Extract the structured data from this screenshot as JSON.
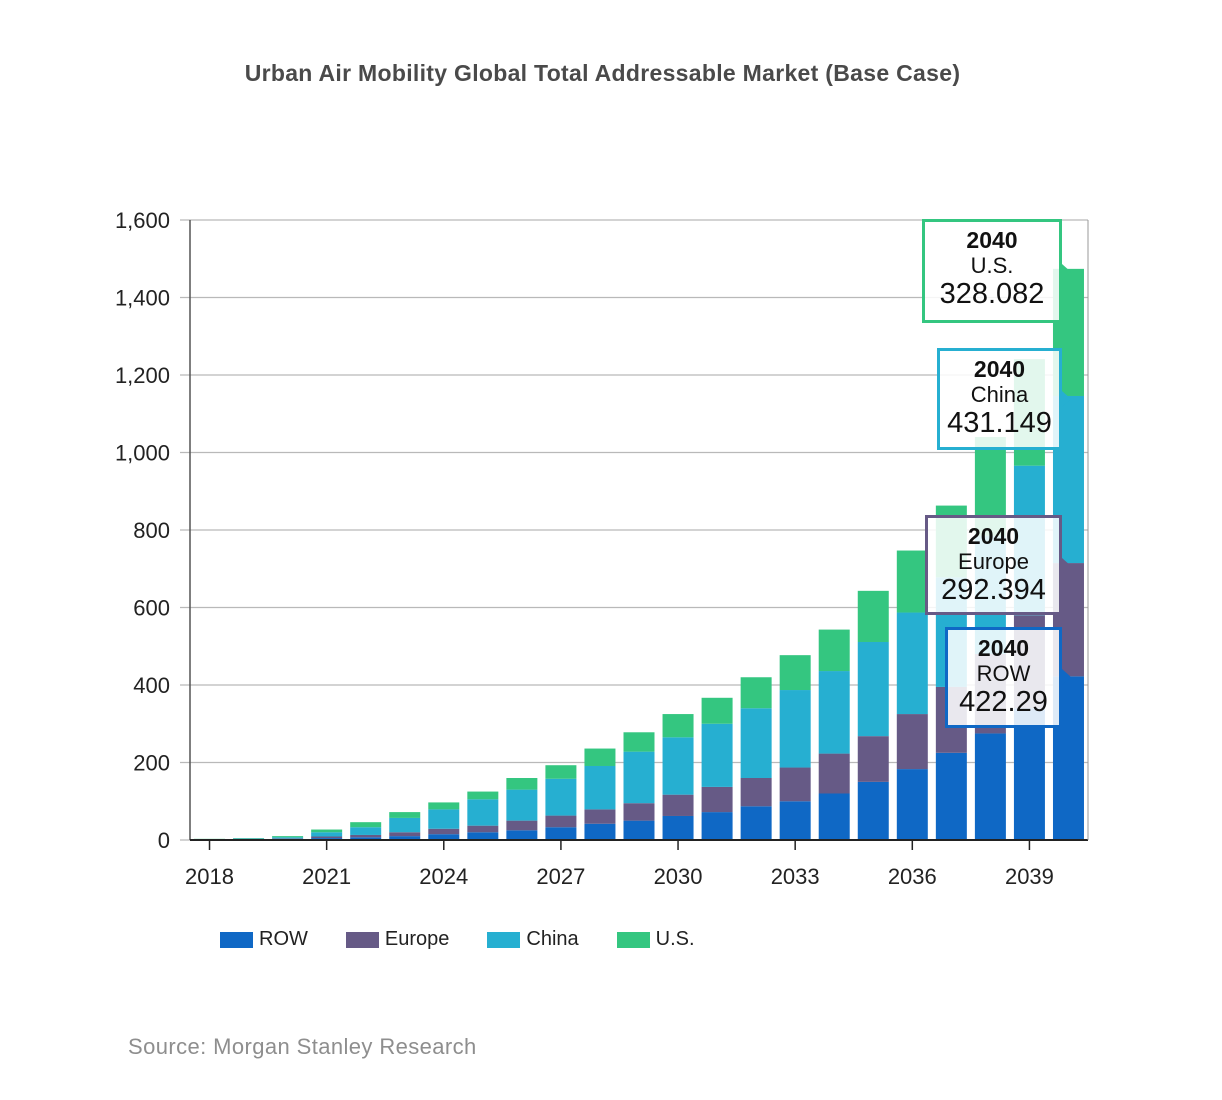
{
  "chart_data": {
    "type": "bar",
    "stacked": true,
    "title": "Urban Air Mobility Global Total Addressable Market (Base Case)",
    "source": "Source: Morgan Stanley Research",
    "xlabel": "",
    "ylabel": "",
    "ylim": [
      0,
      1600
    ],
    "yticks": [
      0,
      200,
      400,
      600,
      800,
      1000,
      1200,
      1400,
      1600
    ],
    "ytick_labels": [
      "0",
      "200",
      "400",
      "600",
      "800",
      "1,000",
      "1,200",
      "1,400",
      "1,600"
    ],
    "categories": [
      2018,
      2019,
      2020,
      2021,
      2022,
      2023,
      2024,
      2025,
      2026,
      2027,
      2028,
      2029,
      2030,
      2031,
      2032,
      2033,
      2034,
      2035,
      2036,
      2037,
      2038,
      2039,
      2040
    ],
    "xtick_labels": [
      "2018",
      "2021",
      "2024",
      "2027",
      "2030",
      "2033",
      "2036",
      "2039"
    ],
    "xtick_categories": [
      2018,
      2021,
      2024,
      2027,
      2030,
      2033,
      2036,
      2039
    ],
    "series": [
      {
        "name": "ROW",
        "color": "#0f68c5",
        "values": [
          1,
          2,
          3,
          5,
          7,
          10,
          15,
          20,
          25,
          33,
          42,
          50,
          62,
          72,
          87,
          100,
          120,
          150,
          183,
          225,
          275,
          340,
          422.29
        ]
      },
      {
        "name": "Europe",
        "color": "#665a86",
        "values": [
          0.5,
          1,
          1,
          4,
          6,
          10,
          14,
          17,
          25,
          30,
          37,
          45,
          55,
          65,
          73,
          87,
          103,
          118,
          142,
          170,
          205,
          240,
          292.394
        ]
      },
      {
        "name": "China",
        "color": "#26afd1",
        "values": [
          1,
          1,
          3,
          11,
          20,
          37,
          50,
          68,
          80,
          95,
          112,
          133,
          148,
          163,
          180,
          200,
          213,
          243,
          262,
          283,
          305,
          386,
          431.149
        ]
      },
      {
        "name": "U.S.",
        "color": "#34c680",
        "values": [
          0.5,
          1,
          3,
          7,
          13,
          15,
          18,
          20,
          30,
          35,
          45,
          50,
          60,
          67,
          80,
          90,
          107,
          132,
          160,
          185,
          255,
          275,
          328.082
        ]
      }
    ],
    "legend": {
      "position": "bottom-left",
      "items": [
        "ROW",
        "Europe",
        "China",
        "U.S."
      ]
    },
    "grid": true,
    "callouts": [
      {
        "year": "2040",
        "series": "U.S.",
        "value": "328.082",
        "color": "#34c680"
      },
      {
        "year": "2040",
        "series": "China",
        "value": "431.149",
        "color": "#26afd1"
      },
      {
        "year": "2040",
        "series": "Europe",
        "value": "292.394",
        "color": "#665a86"
      },
      {
        "year": "2040",
        "series": "ROW",
        "value": "422.29",
        "color": "#0f68c5"
      }
    ]
  }
}
